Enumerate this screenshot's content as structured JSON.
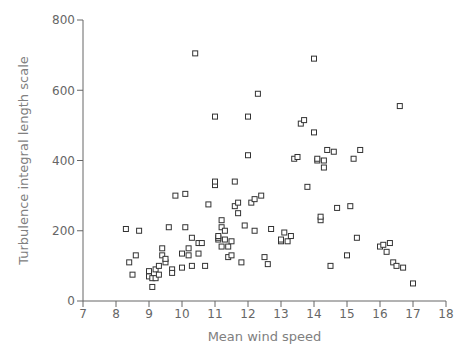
{
  "chart_data": {
    "type": "scatter",
    "x": [
      8.3,
      8.4,
      8.5,
      8.6,
      8.7,
      9.0,
      9.0,
      9.1,
      9.1,
      9.2,
      9.2,
      9.3,
      9.3,
      9.4,
      9.4,
      9.5,
      9.5,
      9.6,
      9.7,
      9.7,
      9.8,
      10.0,
      10.0,
      10.1,
      10.1,
      10.2,
      10.2,
      10.3,
      10.3,
      10.4,
      10.5,
      10.5,
      10.6,
      10.7,
      10.8,
      11.0,
      11.0,
      11.0,
      11.1,
      11.1,
      11.1,
      11.2,
      11.2,
      11.2,
      11.3,
      11.3,
      11.4,
      11.4,
      11.5,
      11.5,
      11.6,
      11.6,
      11.7,
      11.7,
      11.8,
      11.9,
      12.0,
      12.0,
      12.1,
      12.2,
      12.2,
      12.3,
      12.4,
      12.5,
      12.6,
      12.7,
      13.0,
      13.0,
      13.1,
      13.2,
      13.3,
      13.4,
      13.5,
      13.6,
      13.7,
      13.8,
      14.0,
      14.0,
      14.1,
      14.1,
      14.2,
      14.2,
      14.3,
      14.3,
      14.4,
      14.5,
      14.6,
      14.7,
      15.0,
      15.1,
      15.2,
      15.3,
      15.4,
      16.0,
      16.1,
      16.2,
      16.3,
      16.4,
      16.5,
      16.6,
      16.7,
      17.0
    ],
    "y": [
      205,
      110,
      75,
      130,
      200,
      85,
      70,
      65,
      40,
      65,
      90,
      100,
      75,
      130,
      150,
      110,
      120,
      210,
      90,
      80,
      300,
      95,
      135,
      305,
      210,
      130,
      150,
      100,
      180,
      705,
      135,
      165,
      165,
      100,
      275,
      330,
      340,
      525,
      175,
      180,
      185,
      155,
      210,
      230,
      175,
      200,
      125,
      155,
      130,
      170,
      340,
      270,
      250,
      280,
      110,
      215,
      415,
      525,
      280,
      290,
      200,
      590,
      300,
      125,
      105,
      205,
      170,
      175,
      195,
      170,
      185,
      405,
      410,
      505,
      515,
      325,
      480,
      690,
      400,
      405,
      230,
      240,
      400,
      380,
      430,
      100,
      425,
      265,
      130,
      270,
      405,
      180,
      430,
      155,
      160,
      140,
      165,
      110,
      100,
      555,
      95,
      50
    ],
    "xlabel": "Mean wind speed",
    "ylabel": "Turbulence integral length scale",
    "xlim": [
      7,
      18
    ],
    "ylim": [
      0,
      800
    ],
    "xticks": [
      7,
      8,
      9,
      10,
      11,
      12,
      13,
      14,
      15,
      16,
      17,
      18
    ],
    "yticks": [
      0,
      200,
      400,
      600,
      800
    ],
    "marker": "square",
    "color": "#333333",
    "grid": false
  }
}
